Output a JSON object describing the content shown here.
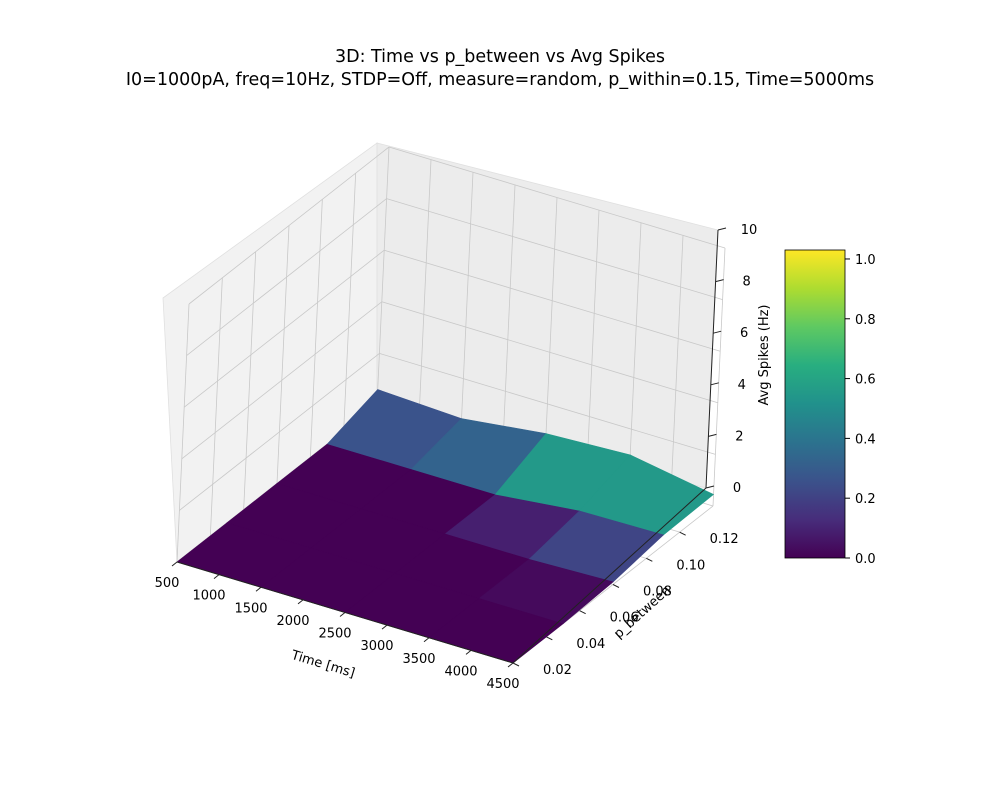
{
  "chart_data": {
    "type": "surface3d",
    "title": "3D: Time vs p_between vs Avg Spikes",
    "subtitle": "I0=1000pA, freq=10Hz, STDP=Off, measure=random, p_within=0.15, Time=5000ms",
    "xlabel": "Time [ms]",
    "ylabel": "p_between",
    "zlabel": "Avg Spikes (Hz)",
    "x": [
      500,
      1500,
      2500,
      3500,
      4500
    ],
    "y": [
      0.02,
      0.05,
      0.08,
      0.11,
      0.14
    ],
    "z": [
      [
        0.0,
        0.0,
        0.0,
        0.0,
        0.0
      ],
      [
        0.0,
        0.0,
        0.0,
        0.0,
        0.0
      ],
      [
        0.0,
        0.0,
        0.0,
        0.0,
        0.1
      ],
      [
        0.0,
        0.0,
        0.0,
        0.35,
        0.4
      ],
      [
        0.6,
        0.45,
        0.85,
        1.0,
        0.45
      ]
    ],
    "x_ticks": [
      500,
      1000,
      1500,
      2000,
      2500,
      3000,
      3500,
      4000,
      4500
    ],
    "y_ticks": [
      0.02,
      0.04,
      0.06,
      0.08,
      0.1,
      0.12
    ],
    "z_ticks": [
      0,
      2,
      4,
      6,
      8,
      10
    ],
    "xlim": [
      500,
      4500
    ],
    "ylim": [
      0.02,
      0.14
    ],
    "zlim": [
      0,
      10
    ],
    "x_tick_labels": [
      "500",
      "1000",
      "1500",
      "2000",
      "2500",
      "3000",
      "3500",
      "4000",
      "4500"
    ],
    "y_tick_labels": [
      "0.02",
      "0.04",
      "0.06",
      "0.08",
      "0.10",
      "0.12"
    ],
    "z_tick_labels": [
      "0",
      "2",
      "4",
      "6",
      "8",
      "10"
    ],
    "colorbar": {
      "colormap": "viridis",
      "range": [
        0.0,
        1.03
      ],
      "ticks": [
        0.0,
        0.2,
        0.4,
        0.6,
        0.8,
        1.0
      ],
      "tick_labels": [
        "0.0",
        "0.2",
        "0.4",
        "0.6",
        "0.8",
        "1.0"
      ]
    },
    "grid": true
  }
}
